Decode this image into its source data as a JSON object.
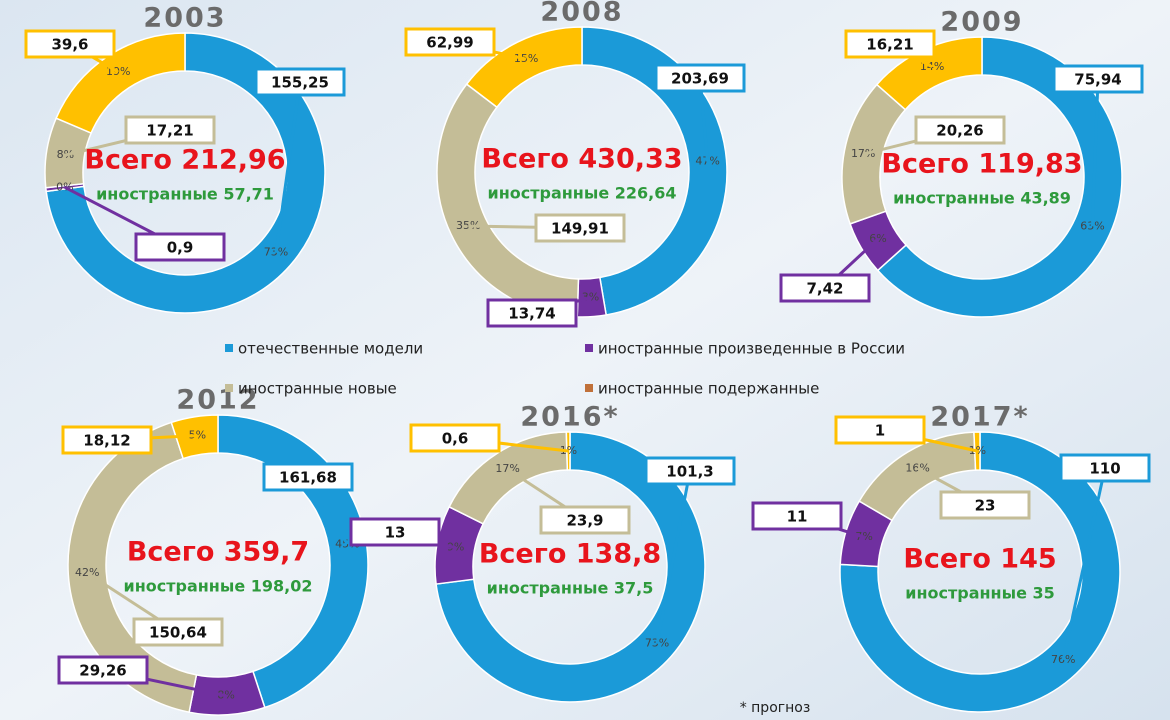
{
  "chart_data": [
    {
      "type": "pie",
      "title": "2003",
      "values": [
        155.25,
        0.9,
        17.21,
        39.6
      ],
      "value_labels": [
        "155,25",
        "0,9",
        "17,21",
        "39,6"
      ],
      "percent_labels": [
        "73%",
        "0%",
        "8%",
        "19%"
      ],
      "total": "Всего 212,96",
      "foreign": "иностранные 57,71",
      "colors": [
        "#1b9ad8",
        "#7030a0",
        "#c4bd97",
        "#ffc000"
      ]
    },
    {
      "type": "pie",
      "title": "2008",
      "values": [
        203.69,
        13.74,
        149.91,
        62.99
      ],
      "value_labels": [
        "203,69",
        "13,74",
        "149,91",
        "62,99"
      ],
      "percent_labels": [
        "47%",
        "3%",
        "35%",
        "15%"
      ],
      "total": "Всего 430,33",
      "foreign": "иностранные 226,64",
      "colors": [
        "#1b9ad8",
        "#7030a0",
        "#c4bd97",
        "#ffc000"
      ]
    },
    {
      "type": "pie",
      "title": "2009",
      "values": [
        75.94,
        7.42,
        20.26,
        16.21
      ],
      "value_labels": [
        "75,94",
        "7,42",
        "20,26",
        "16,21"
      ],
      "percent_labels": [
        "63%",
        "6%",
        "17%",
        "14%"
      ],
      "total": "Всего 119,83",
      "foreign": "иностранные 43,89",
      "colors": [
        "#1b9ad8",
        "#7030a0",
        "#c4bd97",
        "#ffc000"
      ]
    },
    {
      "type": "pie",
      "title": "2012",
      "values": [
        161.68,
        29.26,
        150.64,
        18.12
      ],
      "value_labels": [
        "161,68",
        "29,26",
        "150,64",
        "18,12"
      ],
      "percent_labels": [
        "45%",
        "8%",
        "42%",
        "5%"
      ],
      "total": "Всего 359,7",
      "foreign": "иностранные 198,02",
      "colors": [
        "#1b9ad8",
        "#7030a0",
        "#c4bd97",
        "#ffc000"
      ]
    },
    {
      "type": "pie",
      "title": "2016*",
      "values": [
        101.3,
        13,
        23.9,
        0.6
      ],
      "value_labels": [
        "101,3",
        "13",
        "23,9",
        "0,6"
      ],
      "percent_labels": [
        "73%",
        "9%",
        "17%",
        "1%"
      ],
      "total": "Всего 138,8",
      "foreign": "иностранные 37,5",
      "colors": [
        "#1b9ad8",
        "#7030a0",
        "#c4bd97",
        "#ffc000"
      ]
    },
    {
      "type": "pie",
      "title": "2017*",
      "values": [
        110,
        11,
        23,
        1
      ],
      "value_labels": [
        "110",
        "11",
        "23",
        "1"
      ],
      "percent_labels": [
        "76%",
        "7%",
        "16%",
        "1%"
      ],
      "total": "Всего 145",
      "foreign": "иностранные 35",
      "colors": [
        "#1b9ad8",
        "#7030a0",
        "#c4bd97",
        "#ffc000"
      ]
    }
  ],
  "legend": {
    "names": [
      "отечественные модели",
      "иностранные произведенные в России",
      "иностранные новые",
      "иностранные подержанные"
    ],
    "colors": [
      "#1b9ad8",
      "#7030a0",
      "#c4bd97",
      "#c0703a"
    ]
  },
  "note": "* прогноз"
}
